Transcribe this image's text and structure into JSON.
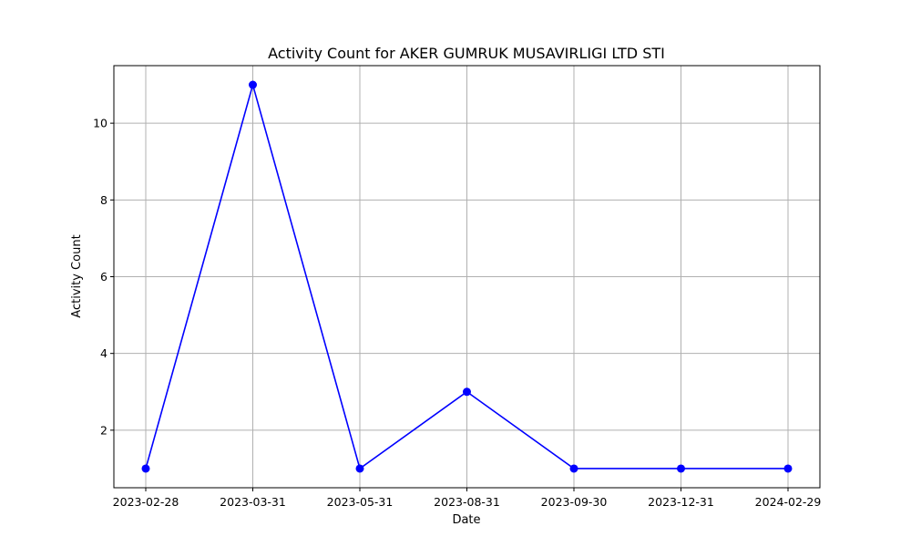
{
  "chart_data": {
    "type": "line",
    "title": "Activity Count for AKER GUMRUK MUSAVIRLIGI LTD STI",
    "xlabel": "Date",
    "ylabel": "Activity Count",
    "categories": [
      "2023-02-28",
      "2023-03-31",
      "2023-05-31",
      "2023-08-31",
      "2023-09-30",
      "2023-12-31",
      "2024-02-29"
    ],
    "series": [
      {
        "values": [
          1,
          11,
          1,
          3,
          1,
          1,
          1
        ],
        "color": "#0000ff",
        "marker": "circle"
      }
    ],
    "y_ticks": [
      2,
      4,
      6,
      8,
      10
    ],
    "ylim": [
      0.5,
      11.5
    ],
    "grid": true
  }
}
